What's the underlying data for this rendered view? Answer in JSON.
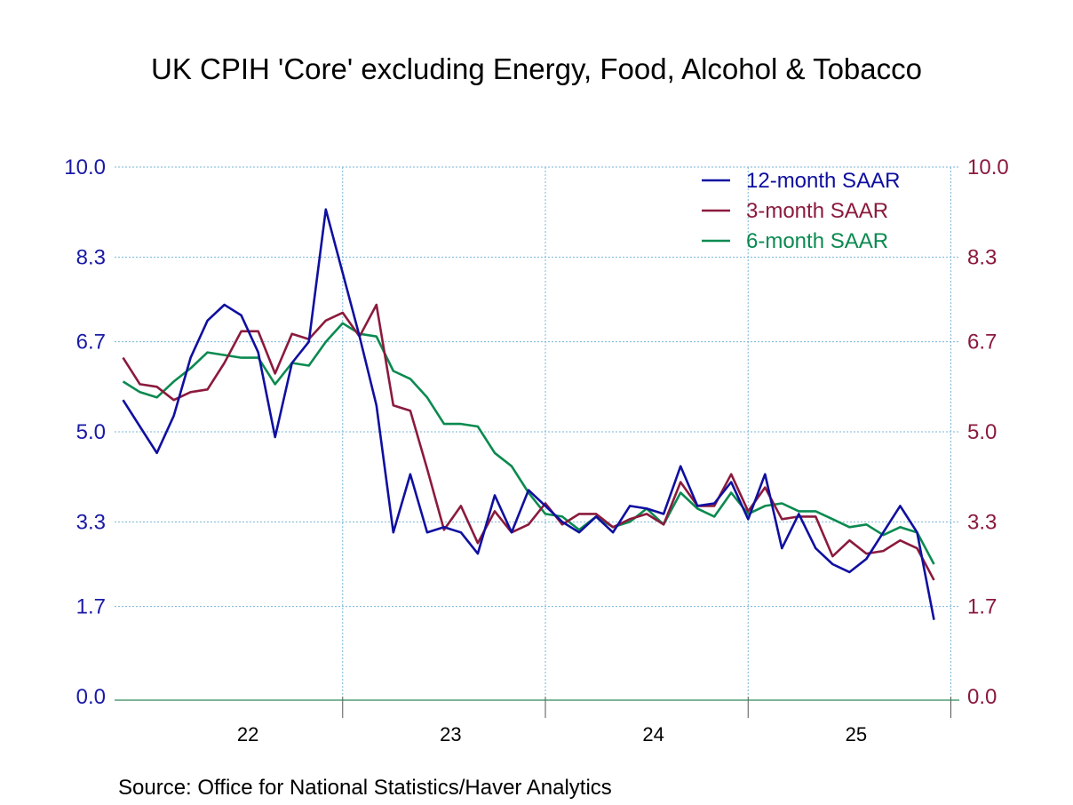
{
  "chart_data": {
    "type": "line",
    "title": "UK CPIH 'Core' excluding Energy, Food, Alcohol & Tobacco",
    "source": "Source:  Office for National Statistics/Haver Analytics",
    "x_start": "2021-11",
    "x_labels": [
      "22",
      "23",
      "24",
      "25"
    ],
    "y_ticks": [
      "0.0",
      "1.7",
      "3.3",
      "5.0",
      "6.7",
      "8.3",
      "10.0"
    ],
    "ylim": [
      0,
      10
    ],
    "grid": true,
    "legend_position": "top-right",
    "colors": {
      "left_axis": "#1a1aa6",
      "right_axis": "#8b1a3c",
      "grid": "#79b6d9",
      "baseline": "#2e8b57"
    },
    "series": [
      {
        "name": "12-month SAAR",
        "color": "#0f0fa0",
        "values": [
          5.6,
          5.1,
          4.6,
          5.3,
          6.4,
          7.1,
          7.4,
          7.2,
          6.5,
          4.9,
          6.3,
          6.7,
          9.2,
          8.0,
          6.8,
          5.5,
          3.1,
          4.2,
          3.1,
          3.2,
          3.1,
          2.7,
          3.8,
          3.1,
          3.9,
          3.6,
          3.3,
          3.1,
          3.4,
          3.1,
          3.6,
          3.55,
          3.45,
          4.35,
          3.6,
          3.65,
          4.05,
          3.35,
          4.2,
          2.8,
          3.45,
          2.8,
          2.5,
          2.35,
          2.6,
          3.1,
          3.6,
          3.1,
          1.45
        ]
      },
      {
        "name": "3-month SAAR",
        "color": "#8b1a3c",
        "values": [
          6.4,
          5.9,
          5.85,
          5.6,
          5.75,
          5.8,
          6.3,
          6.9,
          6.9,
          6.1,
          6.85,
          6.75,
          7.1,
          7.25,
          6.8,
          7.4,
          5.5,
          5.4,
          4.3,
          3.15,
          3.6,
          2.9,
          3.5,
          3.1,
          3.25,
          3.65,
          3.25,
          3.45,
          3.45,
          3.2,
          3.35,
          3.45,
          3.25,
          4.05,
          3.6,
          3.6,
          4.2,
          3.5,
          3.95,
          3.35,
          3.4,
          3.4,
          2.65,
          2.95,
          2.7,
          2.75,
          2.95,
          2.8,
          2.2
        ]
      },
      {
        "name": "6-month SAAR",
        "color": "#0a8a50",
        "values": [
          5.95,
          5.75,
          5.65,
          5.95,
          6.2,
          6.5,
          6.45,
          6.4,
          6.4,
          5.9,
          6.3,
          6.25,
          6.7,
          7.05,
          6.85,
          6.8,
          6.15,
          6.0,
          5.65,
          5.15,
          5.15,
          5.1,
          4.6,
          4.35,
          3.85,
          3.45,
          3.4,
          3.15,
          3.4,
          3.2,
          3.3,
          3.55,
          3.25,
          3.85,
          3.55,
          3.4,
          3.85,
          3.45,
          3.6,
          3.65,
          3.5,
          3.5,
          3.35,
          3.2,
          3.25,
          3.05,
          3.2,
          3.1,
          2.5
        ]
      }
    ]
  }
}
